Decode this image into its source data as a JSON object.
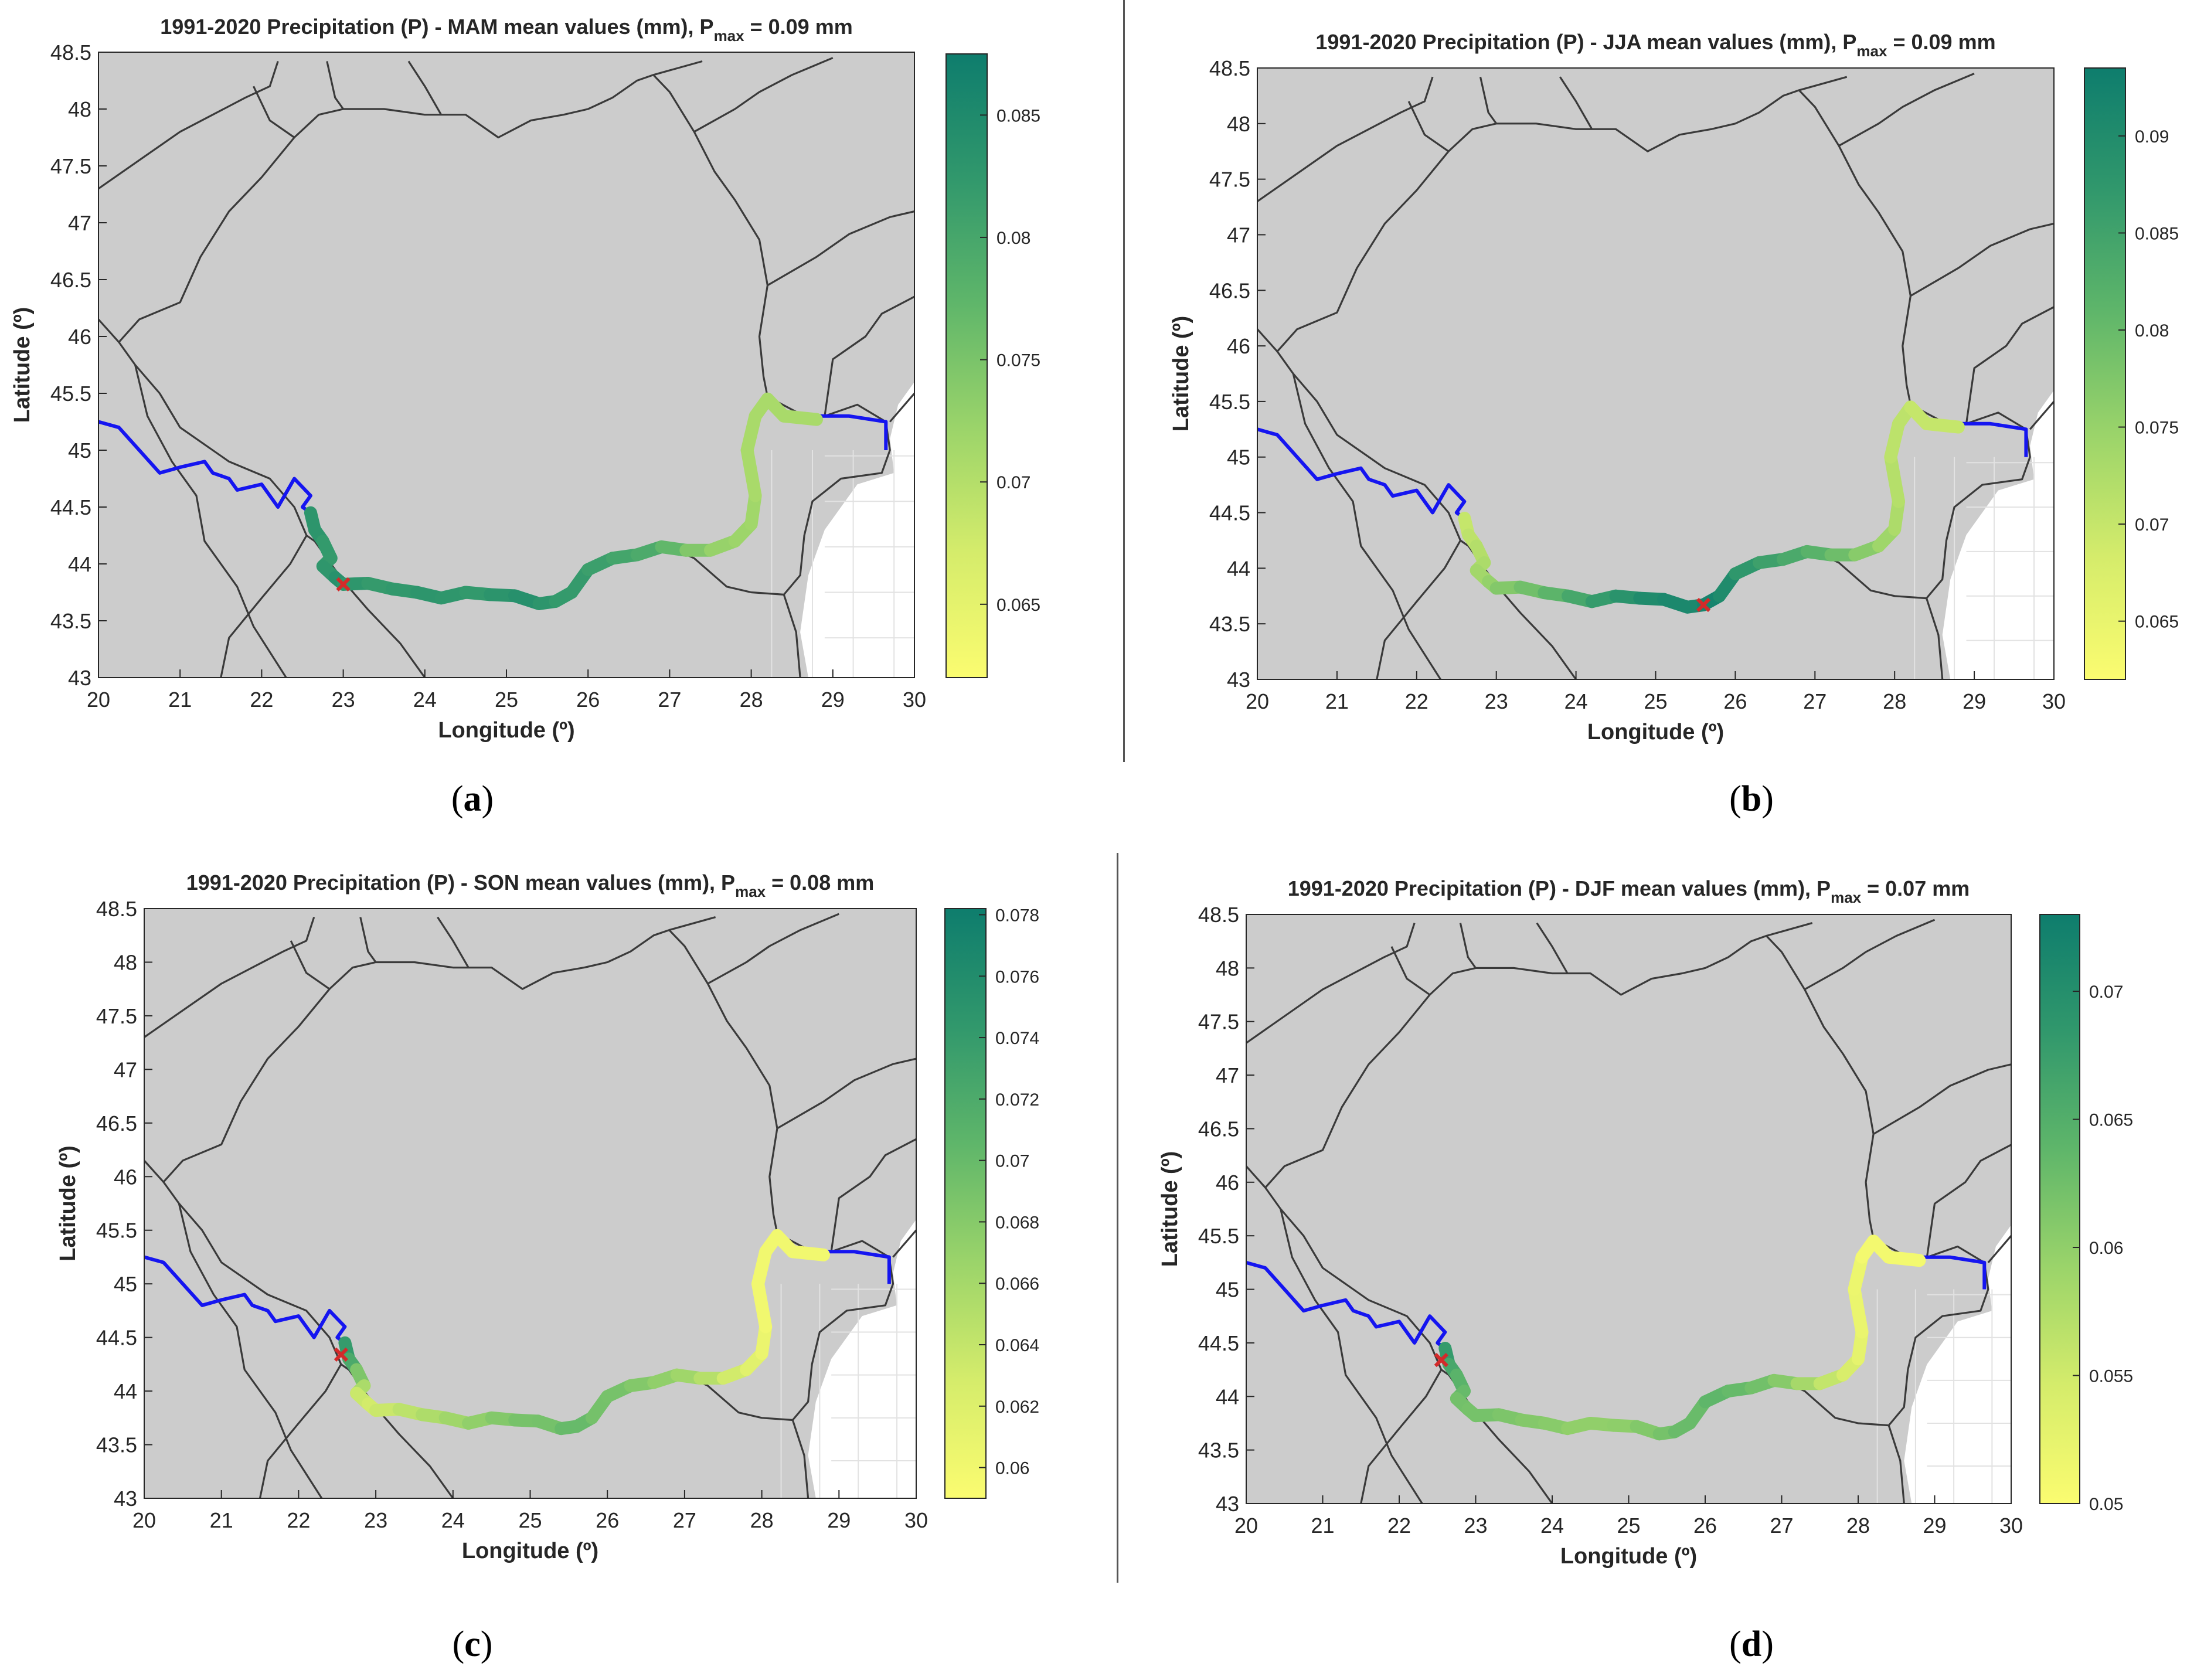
{
  "figure": {
    "panels": [
      {
        "id": "a",
        "caption_letter": "a",
        "title_main": "1991-2020 Precipitation (P) - MAM mean values (mm), P",
        "title_sub": "max",
        "title_tail": " = 0.09 mm",
        "xlabel": "Longitude (º)",
        "ylabel": "Latitude (º)",
        "colorbar": {
          "min": 0.062,
          "max": 0.0875,
          "ticks": [
            "0.065",
            "0.07",
            "0.075",
            "0.08",
            "0.085"
          ],
          "tick_values": [
            0.065,
            0.07,
            0.075,
            0.08,
            0.085
          ]
        },
        "track_values": [
          0.083,
          0.083,
          0.082,
          0.082,
          0.083,
          0.084,
          0.082,
          0.082,
          0.083,
          0.083,
          0.082,
          0.083,
          0.084,
          0.083,
          0.082,
          0.082,
          0.081,
          0.08,
          0.079,
          0.076,
          0.073,
          0.072,
          0.072,
          0.071,
          0.071,
          0.071,
          0.071,
          0.071
        ],
        "marker": {
          "lon": 23.0,
          "lat": 43.82
        }
      },
      {
        "id": "b",
        "caption_letter": "b",
        "title_main": "1991-2020 Precipitation (P) - JJA mean values (mm), P",
        "title_sub": "max",
        "title_tail": " = 0.09 mm",
        "xlabel": "Longitude (º)",
        "ylabel": "Latitude (º)",
        "colorbar": {
          "min": 0.062,
          "max": 0.0935,
          "ticks": [
            "0.065",
            "0.07",
            "0.075",
            "0.08",
            "0.085",
            "0.09"
          ],
          "tick_values": [
            0.065,
            0.07,
            0.075,
            0.08,
            0.085,
            0.09
          ]
        },
        "track_values": [
          0.07,
          0.071,
          0.072,
          0.073,
          0.074,
          0.076,
          0.078,
          0.08,
          0.083,
          0.086,
          0.088,
          0.09,
          0.091,
          0.091,
          0.092,
          0.09,
          0.087,
          0.085,
          0.083,
          0.081,
          0.078,
          0.075,
          0.073,
          0.072,
          0.071,
          0.071,
          0.07,
          0.07
        ],
        "marker": {
          "lon": 25.6,
          "lat": 43.67
        }
      },
      {
        "id": "c",
        "caption_letter": "c",
        "title_main": "1991-2020 Precipitation (P) - SON mean values (mm), P",
        "title_sub": "max",
        "title_tail": " = 0.08 mm",
        "xlabel": "Longitude (º)",
        "ylabel": "Latitude (º)",
        "colorbar": {
          "min": 0.059,
          "max": 0.0782,
          "ticks": [
            "0.06",
            "0.062",
            "0.064",
            "0.066",
            "0.068",
            "0.07",
            "0.072",
            "0.074",
            "0.076",
            "0.078"
          ],
          "tick_values": [
            0.06,
            0.062,
            0.064,
            0.066,
            0.068,
            0.07,
            0.072,
            0.074,
            0.076,
            0.078
          ]
        },
        "track_values": [
          0.074,
          0.072,
          0.068,
          0.065,
          0.063,
          0.063,
          0.064,
          0.065,
          0.066,
          0.067,
          0.068,
          0.069,
          0.069,
          0.07,
          0.07,
          0.069,
          0.069,
          0.068,
          0.067,
          0.066,
          0.064,
          0.062,
          0.061,
          0.06,
          0.06,
          0.06,
          0.06,
          0.06
        ],
        "marker": {
          "lon": 22.55,
          "lat": 44.34
        }
      },
      {
        "id": "d",
        "caption_letter": "d",
        "title_main": "1991-2020 Precipitation (P) - DJF mean values (mm), P",
        "title_sub": "max",
        "title_tail": " = 0.07 mm",
        "xlabel": "Longitude (º)",
        "ylabel": "Latitude (º)",
        "colorbar": {
          "min": 0.05,
          "max": 0.073,
          "ticks": [
            "0.05",
            "0.055",
            "0.06",
            "0.065",
            "0.07"
          ],
          "tick_values": [
            0.05,
            0.055,
            0.06,
            0.065,
            0.07
          ]
        },
        "track_values": [
          0.068,
          0.066,
          0.064,
          0.063,
          0.062,
          0.062,
          0.062,
          0.061,
          0.061,
          0.06,
          0.06,
          0.06,
          0.061,
          0.062,
          0.063,
          0.063,
          0.064,
          0.063,
          0.062,
          0.06,
          0.057,
          0.055,
          0.053,
          0.052,
          0.052,
          0.051,
          0.051,
          0.051
        ],
        "marker": {
          "lon": 22.55,
          "lat": 44.34
        }
      }
    ],
    "axes": {
      "xlim": [
        20,
        30
      ],
      "ylim": [
        43,
        48.5
      ],
      "xticks": [
        "20",
        "21",
        "22",
        "23",
        "24",
        "25",
        "26",
        "27",
        "28",
        "29",
        "30"
      ],
      "yticks": [
        "43",
        "43.5",
        "44",
        "44.5",
        "45",
        "45.5",
        "46",
        "46.5",
        "47",
        "47.5",
        "48",
        "48.5"
      ]
    },
    "colors": {
      "land": "#cccccc",
      "border": "#3a3a3a",
      "river": "#1515f0",
      "marker": "#d42a2a",
      "colormap": [
        "#fbfc70",
        "#d5ec6b",
        "#9bd46a",
        "#5fb66a",
        "#31986c",
        "#0e7d6d"
      ]
    }
  }
}
